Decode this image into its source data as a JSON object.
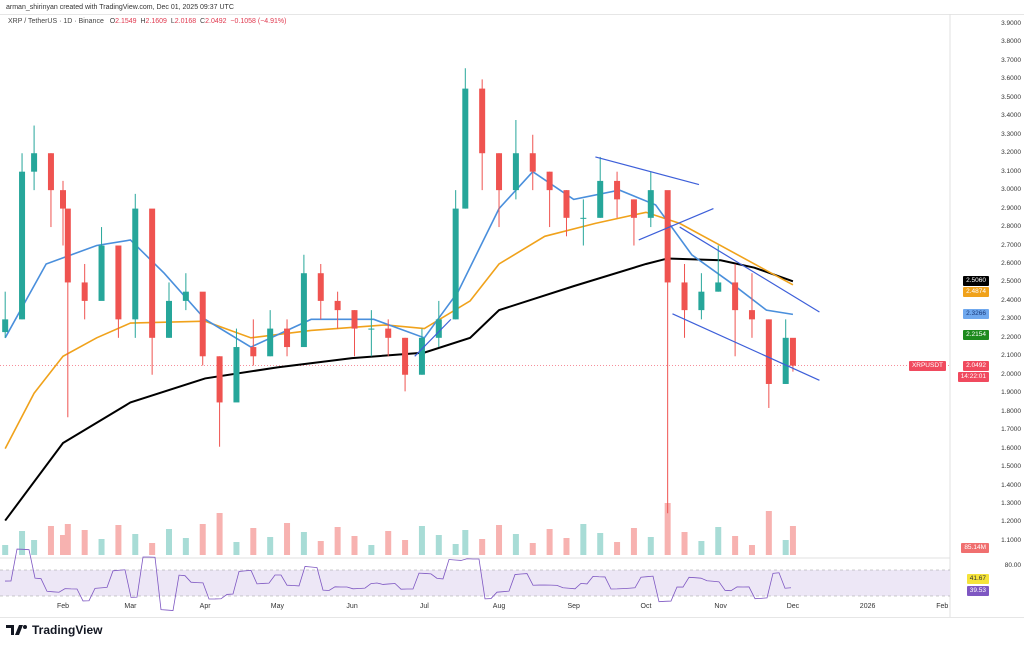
{
  "header": {
    "credit": "arman_shirinyan created with TradingView.com, Dec 01, 2025 09:37 UTC",
    "symbol": "XRP / TetherUS · 1D · Binance",
    "o_label": "O",
    "o": "2.1549",
    "h_label": "H",
    "h": "2.1609",
    "l_label": "L",
    "l": "2.0168",
    "c_label": "C",
    "c": "2.0492",
    "change": "−0.1058 (−4.91%)"
  },
  "logo": {
    "text": "TradingView"
  },
  "chart_data": {
    "type": "candlestick",
    "ylim": [
      1.1,
      3.9
    ],
    "y_ticks": [
      "3.9000",
      "3.8000",
      "3.7000",
      "3.6000",
      "3.5000",
      "3.4000",
      "3.3000",
      "3.2000",
      "3.1000",
      "3.0000",
      "2.9000",
      "2.8000",
      "2.7000",
      "2.6000",
      "2.5000",
      "2.4000",
      "2.3000",
      "2.2000",
      "2.1000",
      "2.0000",
      "1.9000",
      "1.8000",
      "1.7000",
      "1.6000",
      "1.5000",
      "1.4000",
      "1.3000",
      "1.2000",
      "1.1000"
    ],
    "x_ticks": [
      {
        "label": "Feb",
        "date": "2025-02-01"
      },
      {
        "label": "Mar",
        "date": "2025-03-01"
      },
      {
        "label": "Apr",
        "date": "2025-04-01"
      },
      {
        "label": "May",
        "date": "2025-05-01"
      },
      {
        "label": "Jun",
        "date": "2025-06-01"
      },
      {
        "label": "Jul",
        "date": "2025-07-01"
      },
      {
        "label": "Aug",
        "date": "2025-08-01"
      },
      {
        "label": "Sep",
        "date": "2025-09-01"
      },
      {
        "label": "Oct",
        "date": "2025-10-01"
      },
      {
        "label": "Nov",
        "date": "2025-11-01"
      },
      {
        "label": "Dec",
        "date": "2025-12-01"
      },
      {
        "label": "2026",
        "date": "2026-01-01"
      },
      {
        "label": "Feb",
        "date": "2026-02-01"
      }
    ],
    "candles": [
      [
        "2025-01-08",
        2.3,
        2.45,
        2.2
      ],
      [
        "2025-01-15",
        3.1,
        3.2,
        2.3
      ],
      [
        "2025-01-20",
        3.2,
        3.35,
        3.0
      ],
      [
        "2025-01-27",
        3.0,
        3.2,
        2.8
      ],
      [
        "2025-02-01",
        2.9,
        3.05,
        2.7
      ],
      [
        "2025-02-03",
        2.5,
        2.8,
        1.77
      ],
      [
        "2025-02-10",
        2.4,
        2.6,
        2.3
      ],
      [
        "2025-02-17",
        2.7,
        2.8,
        2.5
      ],
      [
        "2025-02-24",
        2.3,
        2.6,
        2.2
      ],
      [
        "2025-03-03",
        2.9,
        2.98,
        2.2
      ],
      [
        "2025-03-10",
        2.2,
        2.5,
        2.0
      ],
      [
        "2025-03-17",
        2.4,
        2.5,
        2.2
      ],
      [
        "2025-03-24",
        2.45,
        2.55,
        2.35
      ],
      [
        "2025-03-31",
        2.1,
        2.3,
        2.05
      ],
      [
        "2025-04-07",
        1.85,
        2.1,
        1.61
      ],
      [
        "2025-04-14",
        2.15,
        2.25,
        1.9
      ],
      [
        "2025-04-21",
        2.1,
        2.3,
        2.05
      ],
      [
        "2025-04-28",
        2.25,
        2.35,
        2.1
      ],
      [
        "2025-05-05",
        2.15,
        2.3,
        2.1
      ],
      [
        "2025-05-12",
        2.55,
        2.65,
        2.2
      ],
      [
        "2025-05-19",
        2.4,
        2.6,
        2.3
      ],
      [
        "2025-05-26",
        2.35,
        2.45,
        2.25
      ],
      [
        "2025-06-02",
        2.25,
        2.35,
        2.1
      ],
      [
        "2025-06-09",
        2.25,
        2.35,
        2.1
      ],
      [
        "2025-06-16",
        2.2,
        2.3,
        2.1
      ],
      [
        "2025-06-23",
        2.0,
        2.2,
        1.91
      ],
      [
        "2025-06-30",
        2.2,
        2.25,
        2.0
      ],
      [
        "2025-07-07",
        2.3,
        2.4,
        2.15
      ],
      [
        "2025-07-14",
        2.9,
        3.0,
        2.3
      ],
      [
        "2025-07-18",
        3.55,
        3.66,
        2.9
      ],
      [
        "2025-07-25",
        3.2,
        3.6,
        3.0
      ],
      [
        "2025-08-01",
        3.0,
        3.2,
        2.8
      ],
      [
        "2025-08-08",
        3.2,
        3.38,
        2.95
      ],
      [
        "2025-08-15",
        3.1,
        3.3,
        3.0
      ],
      [
        "2025-08-22",
        3.0,
        3.1,
        2.8
      ],
      [
        "2025-08-29",
        2.85,
        3.0,
        2.75
      ],
      [
        "2025-09-05",
        2.85,
        2.95,
        2.7
      ],
      [
        "2025-09-12",
        3.05,
        3.18,
        2.85
      ],
      [
        "2025-09-19",
        2.95,
        3.1,
        2.85
      ],
      [
        "2025-09-26",
        2.85,
        2.95,
        2.7
      ],
      [
        "2025-10-03",
        3.0,
        3.1,
        2.8
      ],
      [
        "2025-10-10",
        2.5,
        2.85,
        1.25
      ],
      [
        "2025-10-17",
        2.35,
        2.6,
        2.2
      ],
      [
        "2025-10-24",
        2.45,
        2.55,
        2.3
      ],
      [
        "2025-10-31",
        2.5,
        2.7,
        2.45
      ],
      [
        "2025-11-07",
        2.35,
        2.6,
        2.1
      ],
      [
        "2025-11-14",
        2.3,
        2.55,
        2.2
      ],
      [
        "2025-11-21",
        1.95,
        2.3,
        1.82
      ],
      [
        "2025-11-28",
        2.2,
        2.3,
        1.95
      ],
      [
        "2025-12-01",
        2.0492,
        2.1609,
        2.0168
      ]
    ],
    "moving_averages": [
      {
        "color": "#000000",
        "points": [
          [
            "2025-01-08",
            1.21
          ],
          [
            "2025-02-01",
            1.63
          ],
          [
            "2025-03-01",
            1.85
          ],
          [
            "2025-04-01",
            1.98
          ],
          [
            "2025-05-01",
            2.04
          ],
          [
            "2025-06-01",
            2.09
          ],
          [
            "2025-07-01",
            2.12
          ],
          [
            "2025-07-20",
            2.2
          ],
          [
            "2025-08-01",
            2.35
          ],
          [
            "2025-09-01",
            2.48
          ],
          [
            "2025-10-01",
            2.6
          ],
          [
            "2025-10-10",
            2.63
          ],
          [
            "2025-11-01",
            2.62
          ],
          [
            "2025-11-15",
            2.58
          ],
          [
            "2025-12-01",
            2.506
          ]
        ]
      },
      {
        "color": "#f0a21b",
        "points": [
          [
            "2025-01-08",
            1.6
          ],
          [
            "2025-01-20",
            1.9
          ],
          [
            "2025-02-01",
            2.1
          ],
          [
            "2025-02-15",
            2.2
          ],
          [
            "2025-03-01",
            2.28
          ],
          [
            "2025-04-01",
            2.29
          ],
          [
            "2025-04-20",
            2.2
          ],
          [
            "2025-05-15",
            2.24
          ],
          [
            "2025-06-15",
            2.27
          ],
          [
            "2025-07-01",
            2.25
          ],
          [
            "2025-07-20",
            2.4
          ],
          [
            "2025-08-01",
            2.6
          ],
          [
            "2025-08-20",
            2.75
          ],
          [
            "2025-09-10",
            2.82
          ],
          [
            "2025-10-01",
            2.88
          ],
          [
            "2025-10-15",
            2.82
          ],
          [
            "2025-11-01",
            2.7
          ],
          [
            "2025-11-15",
            2.6
          ],
          [
            "2025-12-01",
            2.487
          ]
        ]
      },
      {
        "color": "#4a8fdc",
        "points": [
          [
            "2025-01-08",
            2.2
          ],
          [
            "2025-01-25",
            2.6
          ],
          [
            "2025-02-15",
            2.7
          ],
          [
            "2025-03-01",
            2.73
          ],
          [
            "2025-03-15",
            2.55
          ],
          [
            "2025-04-01",
            2.3
          ],
          [
            "2025-04-20",
            2.15
          ],
          [
            "2025-05-15",
            2.3
          ],
          [
            "2025-06-10",
            2.3
          ],
          [
            "2025-07-01",
            2.2
          ],
          [
            "2025-07-15",
            2.45
          ],
          [
            "2025-08-01",
            2.9
          ],
          [
            "2025-08-15",
            3.1
          ],
          [
            "2025-09-01",
            2.95
          ],
          [
            "2025-09-20",
            3.0
          ],
          [
            "2025-10-05",
            2.92
          ],
          [
            "2025-10-20",
            2.65
          ],
          [
            "2025-11-05",
            2.5
          ],
          [
            "2025-11-20",
            2.35
          ],
          [
            "2025-12-01",
            2.327
          ]
        ]
      }
    ],
    "trendlines": [
      [
        [
          "2025-09-10",
          3.18
        ],
        [
          "2025-10-23",
          3.03
        ]
      ],
      [
        [
          "2025-09-28",
          2.73
        ],
        [
          "2025-10-29",
          2.9
        ]
      ],
      [
        [
          "2025-10-15",
          2.8
        ],
        [
          "2025-12-12",
          2.34
        ]
      ],
      [
        [
          "2025-10-12",
          2.33
        ],
        [
          "2025-12-12",
          1.97
        ]
      ],
      [
        [
          "2025-06-27",
          2.1
        ],
        [
          "2025-07-12",
          2.3
        ]
      ]
    ],
    "price_tags": [
      {
        "value": "2.5060",
        "price": 2.506,
        "color": "#000000",
        "text": "#ffffff"
      },
      {
        "value": "2.4874",
        "price": 2.4874,
        "color": "#f0a21b",
        "text": "#ffffff"
      },
      {
        "value": "2.3266",
        "price": 2.3266,
        "color": "#6fa8ee",
        "text": "#1a3a7a"
      },
      {
        "value": "2.2154",
        "price": 2.2154,
        "color": "#1e8a1e",
        "text": "#ffffff"
      }
    ],
    "last_price": {
      "symbol": "XRPUSDT",
      "value": "2.0492",
      "countdown": "14:22:01",
      "price": 2.0492,
      "color": "#f04a5e"
    },
    "volume": {
      "last_label": "85.14M",
      "color": "#f06f6f"
    },
    "rsi": {
      "level": "80.00",
      "ma_value": "41.67",
      "value": "39.53",
      "ma_color": "#f5e33a",
      "color": "#7e57c2"
    },
    "colors": {
      "up": "#26a69a",
      "down": "#ef5350",
      "trendline": "#3d5fd9"
    }
  }
}
